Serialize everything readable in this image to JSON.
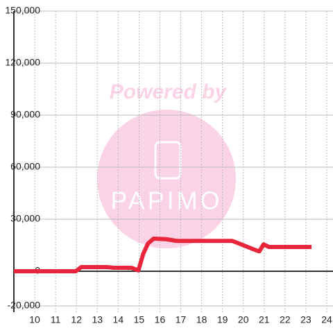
{
  "chart_data": {
    "type": "line",
    "x": [
      9.0,
      11.97,
      12.23,
      13.47,
      13.8,
      14.63,
      14.97,
      15.2,
      15.43,
      15.7,
      16.3,
      16.8,
      19.47,
      19.9,
      20.63,
      20.77,
      20.97,
      21.23,
      23.27
    ],
    "series": [
      {
        "color": "#e8253a",
        "values": [
          0,
          0,
          2400,
          2400,
          2000,
          2000,
          500,
          10000,
          16000,
          18800,
          18500,
          17500,
          17500,
          15500,
          12000,
          11500,
          15500,
          14000,
          14000
        ]
      }
    ],
    "xlim": [
      9,
      24.3
    ],
    "xticks": [
      10,
      11,
      12,
      13,
      14,
      15,
      16,
      17,
      18,
      19,
      20,
      21,
      22,
      23,
      24
    ],
    "ylim": [
      -20000,
      150000
    ],
    "yticks": [
      {
        "value": -20000,
        "label": "-20,000"
      },
      0,
      {
        "value": 30000,
        "label": "30,000"
      },
      {
        "value": 60000,
        "label": "60,000"
      },
      {
        "value": 90000,
        "label": "90,000"
      },
      {
        "value": 120000,
        "label": "120,000"
      },
      {
        "value": 150000,
        "label": "150,000"
      }
    ],
    "grid": true
  },
  "watermark": {
    "text": "Powered by",
    "brand": "PAPIMO"
  }
}
